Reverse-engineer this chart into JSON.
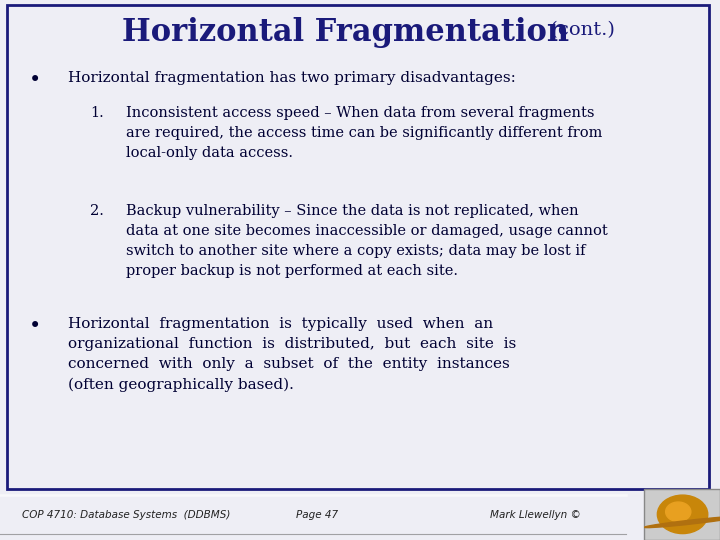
{
  "title_main": "Horizontal Fragmentation",
  "title_cont": " (cont.)",
  "title_color": "#1a1a7a",
  "title_fontsize": 22,
  "title_cont_fontsize": 14,
  "bg_color": "#eeeef5",
  "body_text_color": "#000033",
  "border_color": "#1a1a7a",
  "bullet1": "Horizontal fragmentation has two primary disadvantages:",
  "item1_label": "1.",
  "item1_line1": "Inconsistent access speed – When data from several fragments",
  "item1_line2": "are required, the access time can be significantly different from",
  "item1_line3": "local-only data access.",
  "item2_label": "2.",
  "item2_line1": "Backup vulnerability – Since the data is not replicated, when",
  "item2_line2": "data at one site becomes inaccessible or damaged, usage cannot",
  "item2_line3": "switch to another site where a copy exists; data may be lost if",
  "item2_line4": "proper backup is not performed at each site.",
  "b2_line1": "Horizontal  fragmentation  is  typically  used  when  an",
  "b2_line2": "organizational  function  is  distributed,  but  each  site  is",
  "b2_line3": "concerned  with  only  a  subset  of  the  entity  instances",
  "b2_line4": "(often geographically based).",
  "footer_left": "COP 4710: Database Systems  (DDBMS)",
  "footer_center": "Page 47",
  "footer_right": "Mark Llewellyn ©",
  "footer_color": "#222222",
  "footer_bg": "#a8a8a8"
}
